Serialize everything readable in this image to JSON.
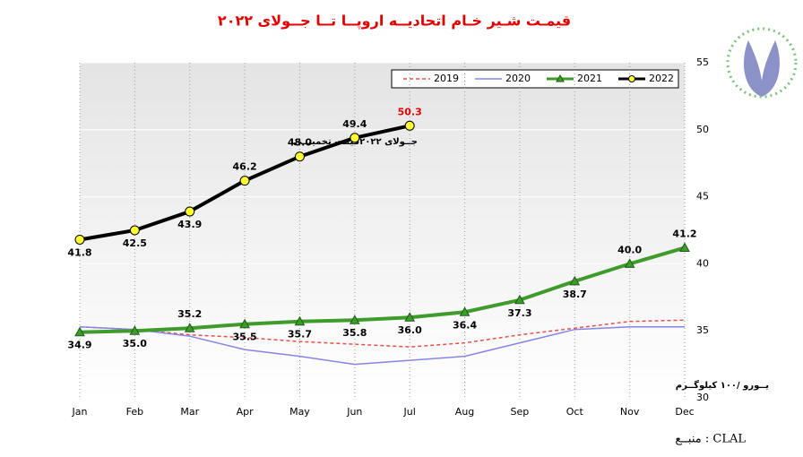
{
  "chart_data": {
    "type": "line",
    "title": "قیمـت شـیر خـام اتحادیــه اروپــا تــا جــولای ۲۰۲۲",
    "annotation": "جــولای ۲۰۲۲قیمت تخمینــی",
    "y_axis_label": "یــورو /۱۰۰ کیلوگــرم",
    "source": "منبــع  :  CLAL",
    "categories": [
      "Jan",
      "Feb",
      "Mar",
      "Apr",
      "May",
      "Jun",
      "Jul",
      "Aug",
      "Sep",
      "Oct",
      "Nov",
      "Dec"
    ],
    "ylim": [
      30,
      55
    ],
    "yticks": [
      30,
      35,
      40,
      45,
      50,
      55
    ],
    "grid": true,
    "legend": "top",
    "series": [
      {
        "name": "2019",
        "color": "#e8504a",
        "values": [
          35.3,
          35.1,
          34.7,
          34.5,
          34.2,
          34.0,
          33.8,
          34.1,
          34.7,
          35.2,
          35.7,
          35.8
        ]
      },
      {
        "name": "2020",
        "color": "#8585e6",
        "values": [
          35.3,
          35.1,
          34.6,
          33.6,
          33.1,
          32.5,
          32.8,
          33.1,
          34.1,
          35.1,
          35.3,
          35.3
        ]
      },
      {
        "name": "2021",
        "color": "#3e9b2c",
        "values": [
          34.9,
          35.0,
          35.2,
          35.5,
          35.7,
          35.8,
          36.0,
          36.4,
          37.3,
          38.7,
          40.0,
          41.2
        ],
        "value_labels": [
          "34.9",
          "35.0",
          "35.2",
          "35.5",
          "35.7",
          "35.8",
          "36.0",
          "36.4",
          "37.3",
          "38.7",
          "40.0",
          "41.2"
        ]
      },
      {
        "name": "2022",
        "color": "#000000",
        "values": [
          41.8,
          42.5,
          43.9,
          46.2,
          48.0,
          49.4,
          50.3,
          null,
          null,
          null,
          null,
          null
        ],
        "value_labels": [
          "41.8",
          "42.5",
          "43.9",
          "46.2",
          "48.0",
          "49.4",
          "50.3",
          null,
          null,
          null,
          null,
          null
        ]
      }
    ]
  }
}
